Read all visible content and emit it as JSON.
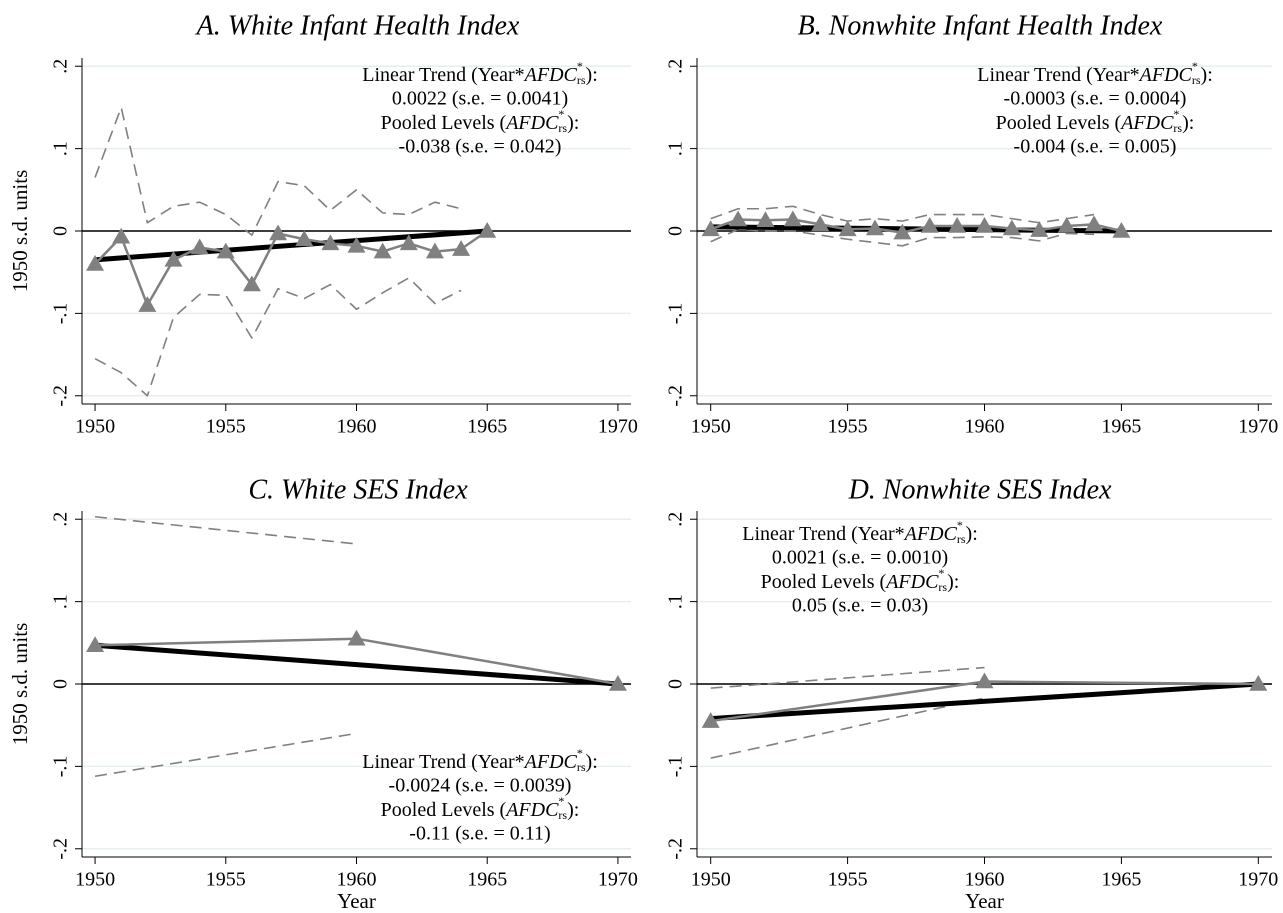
{
  "chart_data": [
    {
      "type": "line",
      "title": "A. White Infant Health Index",
      "ylabel": "1950 s.d. units",
      "x": [
        1950,
        1951,
        1952,
        1953,
        1954,
        1955,
        1956,
        1957,
        1958,
        1959,
        1960,
        1961,
        1962,
        1963,
        1964,
        1965
      ],
      "series": [
        {
          "color": "#808080",
          "style": "dashed",
          "values": [
            0.065,
            0.15,
            0.01,
            0.03,
            0.035,
            0.02,
            -0.005,
            0.06,
            0.055,
            0.025,
            0.05,
            0.022,
            0.02,
            0.035,
            0.027,
            null
          ]
        },
        {
          "color": "#808080",
          "style": "dashed",
          "values": [
            -0.155,
            -0.172,
            -0.2,
            -0.105,
            -0.077,
            -0.078,
            -0.13,
            -0.07,
            -0.082,
            -0.065,
            -0.095,
            -0.075,
            -0.057,
            -0.088,
            -0.072,
            null
          ]
        },
        {
          "color": "#000000",
          "style": "thick",
          "x": [
            1950,
            1965
          ],
          "values": [
            -0.035,
            0
          ]
        },
        {
          "color": "#808080",
          "style": "marker",
          "values": [
            -0.04,
            -0.007,
            -0.09,
            -0.035,
            -0.02,
            -0.025,
            -0.065,
            -0.003,
            -0.01,
            -0.015,
            -0.018,
            -0.025,
            -0.015,
            -0.025,
            -0.022,
            0
          ]
        }
      ],
      "annotation": [
        [
          "Linear Trend (Year*",
          "AFDC",
          "*",
          "rs",
          "):"
        ],
        "0.0022 (s.e. = 0.0041)",
        [
          "Pooled Levels (",
          "AFDC",
          "*",
          "rs",
          "):"
        ],
        "-0.038 (s.e. = 0.042)"
      ],
      "xlim": [
        1949.5,
        1970.5
      ],
      "xticks": [
        1950,
        1955,
        1960,
        1965,
        1970
      ],
      "ylim": [
        -0.21,
        0.21
      ],
      "yticks": [
        {
          "value": 0.2,
          "label": ".2"
        },
        {
          "value": 0.1,
          "label": ".1"
        },
        0,
        {
          "value": -0.1,
          "label": "-.1"
        },
        {
          "value": -0.2,
          "label": "-.2"
        }
      ],
      "grid": true
    },
    {
      "type": "line",
      "title": "B. Nonwhite Infant Health Index",
      "x": [
        1950,
        1951,
        1952,
        1953,
        1954,
        1955,
        1956,
        1957,
        1958,
        1959,
        1960,
        1961,
        1962,
        1963,
        1964,
        1965
      ],
      "series": [
        {
          "color": "#808080",
          "style": "dashed",
          "values": [
            0.015,
            0.027,
            0.027,
            0.03,
            0.02,
            0.012,
            0.015,
            0.012,
            0.02,
            0.02,
            0.02,
            0.015,
            0.01,
            0.015,
            0.02,
            null
          ]
        },
        {
          "color": "#808080",
          "style": "dashed",
          "values": [
            -0.013,
            0.002,
            0,
            0,
            -0.005,
            -0.01,
            -0.014,
            -0.018,
            -0.008,
            -0.008,
            -0.007,
            -0.008,
            -0.012,
            -0.003,
            -0.004,
            null
          ]
        },
        {
          "color": "#000000",
          "style": "thick",
          "x": [
            1950,
            1965
          ],
          "values": [
            0.005,
            0
          ]
        },
        {
          "color": "#808080",
          "style": "marker",
          "values": [
            0.002,
            0.014,
            0.013,
            0.014,
            0.008,
            0.002,
            0.003,
            -0.002,
            0.006,
            0.006,
            0.006,
            0.003,
            0.001,
            0.006,
            0.008,
            0
          ]
        }
      ],
      "annotation": [
        [
          "Linear Trend (Year*",
          "AFDC",
          "*",
          "rs",
          "):"
        ],
        "-0.0003 (s.e. = 0.0004)",
        [
          "Pooled Levels (",
          "AFDC",
          "*",
          "rs",
          "):"
        ],
        "-0.004 (s.e. = 0.005)"
      ],
      "xlim": [
        1949.5,
        1970.5
      ],
      "xticks": [
        1950,
        1955,
        1960,
        1965,
        1970
      ],
      "ylim": [
        -0.21,
        0.21
      ],
      "yticks": [
        {
          "value": 0.2,
          "label": ".2"
        },
        {
          "value": 0.1,
          "label": ".1"
        },
        0,
        {
          "value": -0.1,
          "label": "-.1"
        },
        {
          "value": -0.2,
          "label": "-.2"
        }
      ],
      "grid": true
    },
    {
      "type": "line",
      "title": "C. White SES Index",
      "ylabel": "1950 s.d. units",
      "xlabel": "Year",
      "x": [
        1950,
        1960,
        1970
      ],
      "series": [
        {
          "color": "#808080",
          "style": "dashed",
          "values": [
            0.203,
            0.17,
            null
          ]
        },
        {
          "color": "#808080",
          "style": "dashed",
          "values": [
            -0.112,
            -0.06,
            null
          ]
        },
        {
          "color": "#000000",
          "style": "thick",
          "x": [
            1950,
            1970
          ],
          "values": [
            0.047,
            0
          ]
        },
        {
          "color": "#808080",
          "style": "marker",
          "values": [
            0.047,
            0.055,
            0
          ]
        }
      ],
      "annotation": [
        [
          "Linear Trend (Year*",
          "AFDC",
          "*",
          "rs",
          "):"
        ],
        "-0.0024 (s.e. = 0.0039)",
        [
          "Pooled Levels (",
          "AFDC",
          "*",
          "rs",
          "):"
        ],
        "-0.11 (s.e. = 0.11)"
      ],
      "xlim": [
        1949.5,
        1970.5
      ],
      "xticks": [
        1950,
        1955,
        1960,
        1965,
        1970
      ],
      "ylim": [
        -0.21,
        0.21
      ],
      "yticks": [
        {
          "value": 0.2,
          "label": ".2"
        },
        {
          "value": 0.1,
          "label": ".1"
        },
        0,
        {
          "value": -0.1,
          "label": "-.1"
        },
        {
          "value": -0.2,
          "label": "-.2"
        }
      ],
      "grid": true
    },
    {
      "type": "line",
      "title": "D. Nonwhite SES Index",
      "xlabel": "Year",
      "x": [
        1950,
        1960,
        1970
      ],
      "series": [
        {
          "color": "#808080",
          "style": "dashed",
          "values": [
            -0.005,
            0.02,
            null
          ]
        },
        {
          "color": "#808080",
          "style": "dashed",
          "values": [
            -0.09,
            -0.017,
            null
          ]
        },
        {
          "color": "#000000",
          "style": "thick",
          "x": [
            1950,
            1970
          ],
          "values": [
            -0.042,
            0
          ]
        },
        {
          "color": "#808080",
          "style": "marker",
          "values": [
            -0.045,
            0.003,
            0
          ]
        }
      ],
      "annotation": [
        [
          "Linear Trend (Year*",
          "AFDC",
          "*",
          "rs",
          "):"
        ],
        "0.0021 (s.e. = 0.0010)",
        [
          "Pooled Levels (",
          "AFDC",
          "*",
          "rs",
          "):"
        ],
        "0.05 (s.e. = 0.03)"
      ],
      "xlim": [
        1949.5,
        1970.5
      ],
      "xticks": [
        1950,
        1955,
        1960,
        1965,
        1970
      ],
      "ylim": [
        -0.21,
        0.21
      ],
      "yticks": [
        {
          "value": 0.2,
          "label": ".2"
        },
        {
          "value": 0.1,
          "label": ".1"
        },
        0,
        {
          "value": -0.1,
          "label": "-.1"
        },
        {
          "value": -0.2,
          "label": "-.2"
        }
      ],
      "grid": true
    }
  ]
}
